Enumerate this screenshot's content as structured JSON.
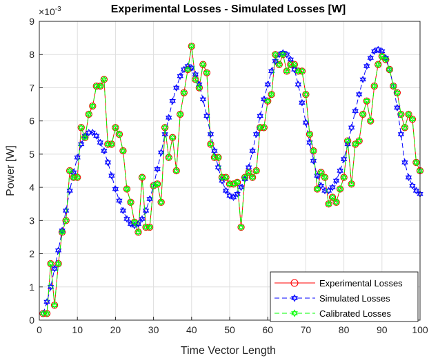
{
  "chart_data": {
    "type": "line",
    "title": "Experimental Losses - Simulated Losses [W]",
    "xlabel": "Time Vector Length",
    "ylabel": "Power [W]",
    "y_exponent_label": "×10",
    "y_exponent_power": "-3",
    "xlim": [
      0,
      100
    ],
    "ylim": [
      0,
      9
    ],
    "x_ticks": [
      "0",
      "10",
      "20",
      "30",
      "40",
      "50",
      "60",
      "70",
      "80",
      "90",
      "100"
    ],
    "y_ticks": [
      "0",
      "1",
      "2",
      "3",
      "4",
      "5",
      "6",
      "7",
      "8",
      "9"
    ],
    "grid": true,
    "legend_position": "bottom-right",
    "series": [
      {
        "name": "Experimental Losses",
        "color": "#ff0000",
        "marker": "circle",
        "line": "solid",
        "x": [
          1,
          2,
          3,
          4,
          5,
          6,
          7,
          8,
          9,
          10,
          11,
          12,
          13,
          14,
          15,
          16,
          17,
          18,
          19,
          20,
          21,
          22,
          23,
          24,
          25,
          26,
          27,
          28,
          29,
          30,
          31,
          32,
          33,
          34,
          35,
          36,
          37,
          38,
          39,
          40,
          41,
          42,
          43,
          44,
          45,
          46,
          47,
          48,
          49,
          50,
          51,
          52,
          53,
          54,
          55,
          56,
          57,
          58,
          59,
          60,
          61,
          62,
          63,
          64,
          65,
          66,
          67,
          68,
          69,
          70,
          71,
          72,
          73,
          74,
          75,
          76,
          77,
          78,
          79,
          80,
          81,
          82,
          83,
          84,
          85,
          86,
          87,
          88,
          89,
          90,
          91,
          92,
          93,
          94,
          95,
          96,
          97,
          98,
          99,
          100
        ],
        "y": [
          0.2,
          0.2,
          1.7,
          0.45,
          1.7,
          2.65,
          3.0,
          4.5,
          4.3,
          4.3,
          5.8,
          5.5,
          6.2,
          6.45,
          7.05,
          7.05,
          7.25,
          5.3,
          5.3,
          5.8,
          5.6,
          5.1,
          3.95,
          3.55,
          2.95,
          2.65,
          4.3,
          2.8,
          2.8,
          4.05,
          4.1,
          3.55,
          5.8,
          4.9,
          5.5,
          4.5,
          6.2,
          6.85,
          7.55,
          8.25,
          7.25,
          7.0,
          7.7,
          7.45,
          5.3,
          4.9,
          4.9,
          4.3,
          4.3,
          4.1,
          4.1,
          4.15,
          2.8,
          4.3,
          4.45,
          4.3,
          4.5,
          5.8,
          5.8,
          6.6,
          6.8,
          8.0,
          7.7,
          8.0,
          7.5,
          7.7,
          7.7,
          7.5,
          7.5,
          6.8,
          5.6,
          5.1,
          3.95,
          4.45,
          4.3,
          3.5,
          3.7,
          3.55,
          3.95,
          4.3,
          5.4,
          4.1,
          5.3,
          5.4,
          6.2,
          6.6,
          6.0,
          7.05,
          7.7,
          7.95,
          7.85,
          7.55,
          7.05,
          6.85,
          6.2,
          5.8,
          6.2,
          6.05,
          4.75,
          4.5
        ]
      },
      {
        "name": "Simulated Losses",
        "color": "#0000ff",
        "marker": "hexagram",
        "line": "dashed",
        "x": [
          1,
          2,
          3,
          4,
          5,
          6,
          7,
          8,
          9,
          10,
          11,
          12,
          13,
          14,
          15,
          16,
          17,
          18,
          19,
          20,
          21,
          22,
          23,
          24,
          25,
          26,
          27,
          28,
          29,
          30,
          31,
          32,
          33,
          34,
          35,
          36,
          37,
          38,
          39,
          40,
          41,
          42,
          43,
          44,
          45,
          46,
          47,
          48,
          49,
          50,
          51,
          52,
          53,
          54,
          55,
          56,
          57,
          58,
          59,
          60,
          61,
          62,
          63,
          64,
          65,
          66,
          67,
          68,
          69,
          70,
          71,
          72,
          73,
          74,
          75,
          76,
          77,
          78,
          79,
          80,
          81,
          82,
          83,
          84,
          85,
          86,
          87,
          88,
          89,
          90,
          91,
          92,
          93,
          94,
          95,
          96,
          97,
          98,
          99,
          100
        ],
        "y": [
          0.2,
          0.55,
          1.0,
          1.55,
          2.1,
          2.7,
          3.3,
          3.9,
          4.45,
          4.9,
          5.3,
          5.55,
          5.65,
          5.65,
          5.55,
          5.35,
          5.1,
          4.75,
          4.35,
          3.95,
          3.6,
          3.3,
          3.05,
          2.9,
          2.85,
          2.9,
          3.05,
          3.3,
          3.65,
          4.05,
          4.55,
          5.05,
          5.6,
          6.1,
          6.6,
          7.0,
          7.35,
          7.55,
          7.65,
          7.6,
          7.4,
          7.1,
          6.65,
          6.15,
          5.6,
          5.1,
          4.6,
          4.2,
          3.9,
          3.75,
          3.7,
          3.8,
          4.0,
          4.25,
          4.6,
          5.1,
          5.6,
          6.15,
          6.65,
          7.1,
          7.5,
          7.8,
          8.0,
          8.05,
          8.0,
          7.85,
          7.55,
          7.1,
          6.55,
          5.95,
          5.35,
          4.8,
          4.35,
          4.05,
          3.9,
          3.9,
          4.0,
          4.2,
          4.5,
          4.85,
          5.3,
          5.8,
          6.3,
          6.8,
          7.25,
          7.65,
          7.9,
          8.1,
          8.15,
          8.1,
          7.9,
          7.55,
          7.05,
          6.4,
          5.6,
          4.75,
          4.3,
          4.05,
          3.9,
          3.8
        ]
      },
      {
        "name": "Calibrated Losses",
        "color": "#00ff00",
        "marker": "hexagram",
        "line": "dashed",
        "x": [
          1,
          2,
          3,
          4,
          5,
          6,
          7,
          8,
          9,
          10,
          11,
          12,
          13,
          14,
          15,
          16,
          17,
          18,
          19,
          20,
          21,
          22,
          23,
          24,
          25,
          26,
          27,
          28,
          29,
          30,
          31,
          32,
          33,
          34,
          35,
          36,
          37,
          38,
          39,
          40,
          41,
          42,
          43,
          44,
          45,
          46,
          47,
          48,
          49,
          50,
          51,
          52,
          53,
          54,
          55,
          56,
          57,
          58,
          59,
          60,
          61,
          62,
          63,
          64,
          65,
          66,
          67,
          68,
          69,
          70,
          71,
          72,
          73,
          74,
          75,
          76,
          77,
          78,
          79,
          80,
          81,
          82,
          83,
          84,
          85,
          86,
          87,
          88,
          89,
          90,
          91,
          92,
          93,
          94,
          95,
          96,
          97,
          98,
          99,
          100
        ],
        "y": [
          0.2,
          0.2,
          1.7,
          0.45,
          1.7,
          2.65,
          3.0,
          4.5,
          4.3,
          4.3,
          5.8,
          5.5,
          6.2,
          6.45,
          7.05,
          7.05,
          7.25,
          5.3,
          5.3,
          5.8,
          5.6,
          5.1,
          3.95,
          3.55,
          2.95,
          2.65,
          4.3,
          2.8,
          2.8,
          4.05,
          4.1,
          3.55,
          5.8,
          4.9,
          5.5,
          4.5,
          6.2,
          6.85,
          7.55,
          8.25,
          7.25,
          7.0,
          7.7,
          7.45,
          5.3,
          4.9,
          4.9,
          4.3,
          4.3,
          4.1,
          4.1,
          4.15,
          2.8,
          4.3,
          4.45,
          4.3,
          4.5,
          5.8,
          5.8,
          6.6,
          6.8,
          8.0,
          7.7,
          8.0,
          7.5,
          7.7,
          7.7,
          7.5,
          7.5,
          6.8,
          5.6,
          5.1,
          3.95,
          4.45,
          4.3,
          3.5,
          3.7,
          3.55,
          3.95,
          4.3,
          5.4,
          4.1,
          5.3,
          5.4,
          6.2,
          6.6,
          6.0,
          7.05,
          7.7,
          7.95,
          7.85,
          7.55,
          7.05,
          6.85,
          6.2,
          5.8,
          6.2,
          6.05,
          4.75,
          4.5
        ]
      }
    ]
  }
}
